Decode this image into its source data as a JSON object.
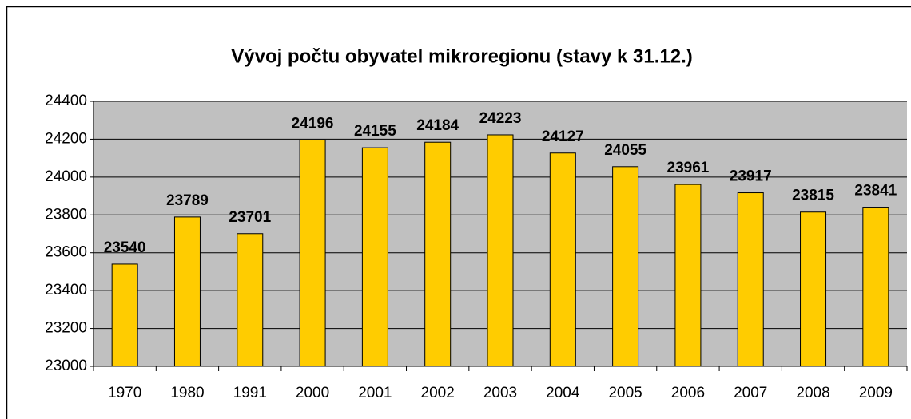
{
  "chart_data": {
    "type": "bar",
    "title": "Vývoj počtu obyvatel mikroregionu (stavy k 31.12.)",
    "categories": [
      "1970",
      "1980",
      "1991",
      "2000",
      "2001",
      "2002",
      "2003",
      "2004",
      "2005",
      "2006",
      "2007",
      "2008",
      "2009"
    ],
    "values": [
      23540,
      23789,
      23701,
      24196,
      24155,
      24184,
      24223,
      24127,
      24055,
      23961,
      23917,
      23815,
      23841
    ],
    "color": "#ffcc00",
    "ylim": [
      23000,
      24400
    ],
    "yticks": [
      23000,
      23200,
      23400,
      23600,
      23800,
      24000,
      24200,
      24400
    ],
    "grid": true
  }
}
